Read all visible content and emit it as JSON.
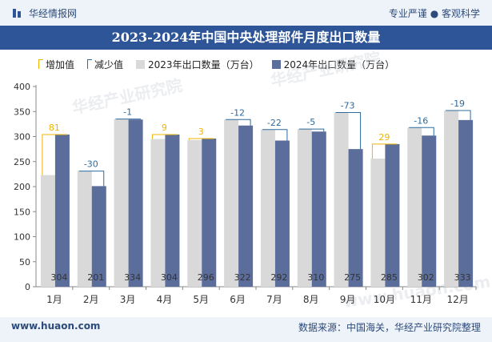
{
  "header": {
    "brand": "华经情报网",
    "tagline": "专业严谨 ● 客观科学"
  },
  "footer": {
    "url": "www.huaon.com",
    "source": "数据来源：中国海关，华经产业研究院整理"
  },
  "watermarks": [
    "华经产业研究院",
    "华经产业研究院",
    "www.huaon.com"
  ],
  "colors": {
    "bar2023": "#d9d9d9",
    "bar2024": "#5b6e9b",
    "increase": "#f0b400",
    "decrease": "#2e6b9e",
    "header_bg": "#2e5597"
  },
  "chart_data": {
    "type": "bar",
    "title": "2023-2024年中国中央处理部件月度出口数量",
    "categories": [
      "1月",
      "2月",
      "3月",
      "4月",
      "5月",
      "6月",
      "7月",
      "8月",
      "9月",
      "10月",
      "11月",
      "12月"
    ],
    "series": [
      {
        "name": "2023年出口数量（万台）",
        "values": [
          223,
          231,
          335,
          295,
          293,
          334,
          314,
          315,
          348,
          256,
          318,
          352
        ]
      },
      {
        "name": "2024年出口数量（万台）",
        "values": [
          304,
          201,
          334,
          304,
          296,
          322,
          292,
          310,
          275,
          285,
          302,
          333
        ]
      }
    ],
    "diff_labels": [
      "81",
      "-30",
      "-1",
      "9",
      "3",
      "-12",
      "-22",
      "-5",
      "-73",
      "29",
      "-16",
      "-19"
    ],
    "value_labels_2024": [
      "304",
      "201",
      "334",
      "304",
      "296",
      "322",
      "292",
      "310",
      "275",
      "285",
      "302",
      "333"
    ],
    "legend": [
      "增加值",
      "减少值",
      "2023年出口数量（万台）",
      "2024年出口数量（万台）"
    ],
    "legend_position": "top",
    "ylim": [
      0,
      400
    ],
    "yticks": [
      "0",
      "50",
      "100",
      "150",
      "200",
      "250",
      "300",
      "350",
      "400"
    ],
    "grid": false
  }
}
